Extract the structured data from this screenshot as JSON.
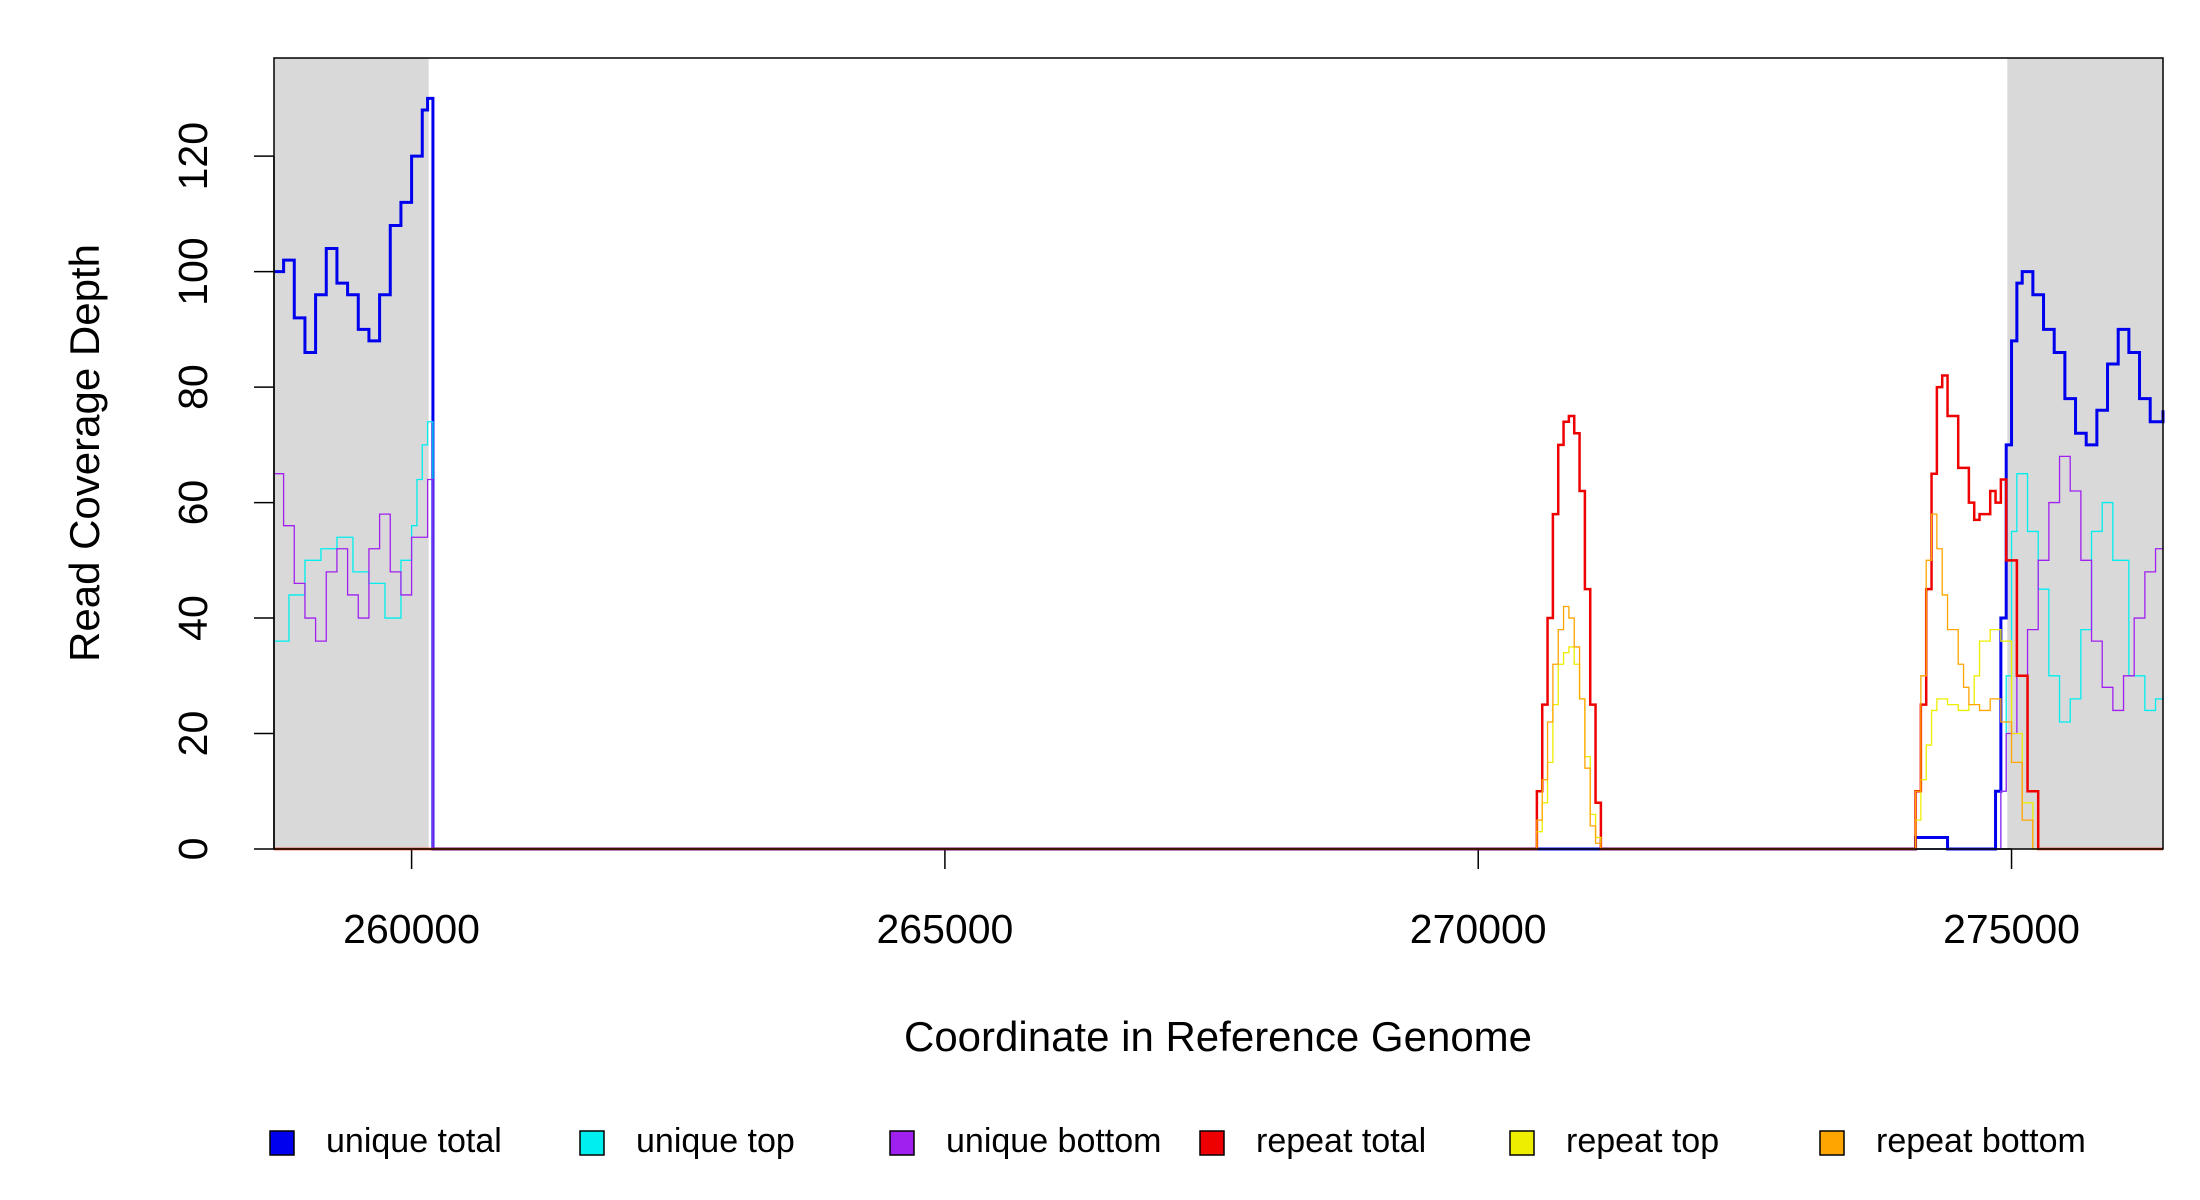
{
  "chart_data": {
    "type": "step",
    "x_label": "Coordinate in Reference Genome",
    "y_label": "Read Coverage Depth",
    "xlim": [
      258710,
      276420
    ],
    "ylim": [
      0,
      137
    ],
    "xticks": [
      260000,
      265000,
      270000,
      275000
    ],
    "yticks": [
      0,
      20,
      40,
      60,
      80,
      100,
      120
    ],
    "shaded_ranges": [
      [
        258710,
        260160
      ],
      [
        274960,
        276420
      ]
    ],
    "shade_color": "#d9d9d9",
    "legend": "bottom",
    "series": [
      {
        "name": "unique total",
        "color": "#0000ee",
        "width": 3,
        "x": [
          258710,
          258800,
          258900,
          259000,
          259100,
          259200,
          259300,
          259400,
          259500,
          259600,
          259700,
          259800,
          259900,
          260000,
          260100,
          260150,
          260200,
          274100,
          274400,
          274850,
          274900,
          274950,
          275000,
          275050,
          275100,
          275200,
          275300,
          275400,
          275500,
          275600,
          275700,
          275800,
          275900,
          276000,
          276100,
          276200,
          276300,
          276420
        ],
        "values": [
          100,
          102,
          92,
          86,
          96,
          104,
          98,
          96,
          90,
          88,
          96,
          108,
          112,
          120,
          128,
          130,
          0,
          2,
          0,
          10,
          40,
          70,
          88,
          98,
          100,
          96,
          90,
          86,
          78,
          72,
          70,
          76,
          84,
          90,
          86,
          78,
          74,
          76
        ]
      },
      {
        "name": "unique top",
        "color": "#00eeee",
        "width": 1.3,
        "x": [
          258710,
          258850,
          259000,
          259150,
          259300,
          259450,
          259600,
          259750,
          259900,
          260000,
          260050,
          260100,
          260150,
          260200,
          274900,
          274950,
          275000,
          275050,
          275150,
          275250,
          275350,
          275450,
          275550,
          275650,
          275750,
          275850,
          275950,
          276100,
          276250,
          276350
        ],
        "values": [
          36,
          44,
          50,
          52,
          54,
          48,
          46,
          40,
          50,
          56,
          64,
          70,
          74,
          0,
          10,
          30,
          55,
          65,
          55,
          45,
          30,
          22,
          26,
          38,
          55,
          60,
          50,
          30,
          24,
          26
        ]
      },
      {
        "name": "unique bottom",
        "color": "#a020f0",
        "width": 1.3,
        "x": [
          258710,
          258800,
          258900,
          259000,
          259100,
          259200,
          259300,
          259400,
          259500,
          259600,
          259700,
          259800,
          259900,
          260000,
          260150,
          260200,
          274900,
          274950,
          275050,
          275150,
          275250,
          275350,
          275450,
          275550,
          275650,
          275750,
          275850,
          275950,
          276050,
          276150,
          276250,
          276350
        ],
        "values": [
          65,
          56,
          46,
          40,
          36,
          48,
          52,
          44,
          40,
          52,
          58,
          48,
          44,
          54,
          64,
          0,
          10,
          20,
          30,
          38,
          50,
          60,
          68,
          62,
          50,
          36,
          28,
          24,
          30,
          40,
          48,
          52
        ]
      },
      {
        "name": "repeat total",
        "color": "#ee0000",
        "width": 2.5,
        "x": [
          258710,
          270550,
          270600,
          270650,
          270700,
          270750,
          270800,
          270850,
          270900,
          270950,
          271000,
          271050,
          271100,
          271150,
          274100,
          274150,
          274200,
          274250,
          274300,
          274350,
          274400,
          274500,
          274600,
          274650,
          274700,
          274800,
          274850,
          274900,
          274950,
          275050,
          275150,
          275250
        ],
        "values": [
          0,
          10,
          25,
          40,
          58,
          70,
          74,
          75,
          72,
          62,
          45,
          25,
          8,
          0,
          10,
          25,
          45,
          65,
          80,
          82,
          75,
          66,
          60,
          57,
          58,
          62,
          60,
          64,
          50,
          30,
          10,
          0
        ]
      },
      {
        "name": "repeat top",
        "color": "#eeee00",
        "width": 1.3,
        "x": [
          258710,
          270550,
          270600,
          270650,
          270700,
          270750,
          270800,
          270850,
          270900,
          270950,
          271000,
          271050,
          271100,
          271150,
          274100,
          274150,
          274200,
          274250,
          274300,
          274400,
          274500,
          274600,
          274650,
          274700,
          274800,
          274900,
          275000,
          275100,
          275200
        ],
        "values": [
          0,
          3,
          8,
          15,
          25,
          32,
          34,
          35,
          32,
          26,
          16,
          6,
          2,
          0,
          5,
          12,
          18,
          24,
          26,
          25,
          24,
          25,
          30,
          36,
          38,
          36,
          20,
          8,
          0
        ]
      },
      {
        "name": "repeat bottom",
        "color": "#ffa500",
        "width": 1.3,
        "x": [
          258710,
          270550,
          270600,
          270650,
          270700,
          270750,
          270800,
          270850,
          270900,
          270950,
          271000,
          271050,
          271100,
          271150,
          274100,
          274150,
          274200,
          274250,
          274300,
          274350,
          274400,
          274500,
          274550,
          274600,
          274700,
          274800,
          274900,
          275000,
          275100,
          275200
        ],
        "values": [
          0,
          5,
          12,
          22,
          32,
          38,
          42,
          40,
          35,
          26,
          14,
          4,
          1,
          0,
          10,
          30,
          50,
          58,
          52,
          44,
          38,
          32,
          28,
          25,
          24,
          26,
          22,
          15,
          5,
          0
        ]
      }
    ]
  }
}
